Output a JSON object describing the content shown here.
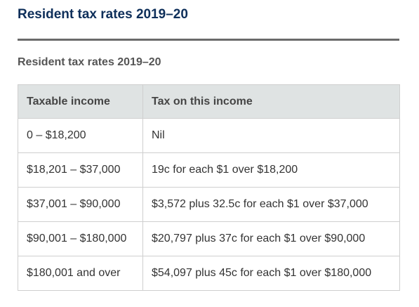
{
  "page": {
    "heading": "Resident tax rates 2019–20"
  },
  "table": {
    "caption": "Resident tax rates 2019–20",
    "headers": [
      "Taxable income",
      "Tax on this income"
    ],
    "rows": [
      [
        "0 – $18,200",
        "Nil"
      ],
      [
        "$18,201 – $37,000",
        "19c for each $1 over $18,200"
      ],
      [
        "$37,001 – $90,000",
        "$3,572 plus 32.5c for each $1 over $37,000"
      ],
      [
        "$90,001 – $180,000",
        "$20,797 plus 37c for each $1 over $90,000"
      ],
      [
        "$180,001 and over",
        "$54,097 plus 45c for each $1 over $180,000"
      ]
    ]
  },
  "colors": {
    "heading": "#0e2f5a",
    "divider": "#6b6b6b",
    "header_background": "#dfe3e3",
    "border": "#cfcfcf"
  }
}
